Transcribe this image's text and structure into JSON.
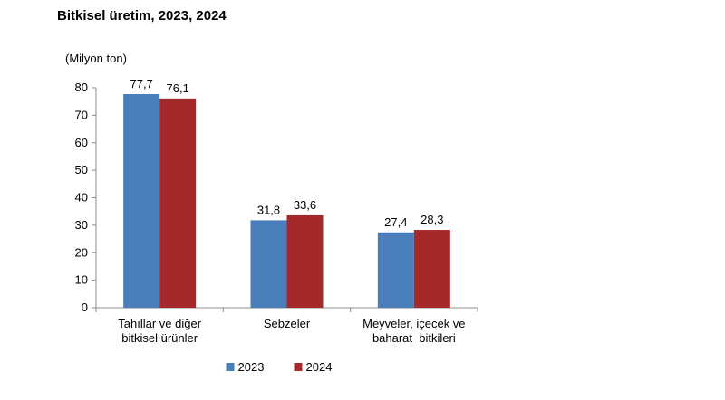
{
  "title": "Bitkisel üretim, 2023, 2024",
  "chart_data": {
    "type": "bar",
    "title": "Bitkisel üretim, 2023, 2024",
    "ylabel": "(Milyon ton)",
    "xlabel": "",
    "ylim": [
      0,
      80
    ],
    "yticks": [
      0,
      10,
      20,
      30,
      40,
      50,
      60,
      70,
      80
    ],
    "grid": false,
    "legend_position": "bottom-center",
    "categories": [
      [
        "Tahıllar ve diğer",
        "bitkisel ürünler"
      ],
      [
        "Sebzeler"
      ],
      [
        "Meyveler, içecek ve",
        "baharat  bitkileri"
      ]
    ],
    "series": [
      {
        "name": "2023",
        "color": "#4a7ebb",
        "values": [
          77.7,
          31.8,
          27.4
        ],
        "labels": [
          "77,7",
          "31,8",
          "27,4"
        ]
      },
      {
        "name": "2024",
        "color": "#a5282b",
        "values": [
          76.1,
          33.6,
          28.3
        ],
        "labels": [
          "76,1",
          "33,6",
          "28,3"
        ]
      }
    ]
  }
}
